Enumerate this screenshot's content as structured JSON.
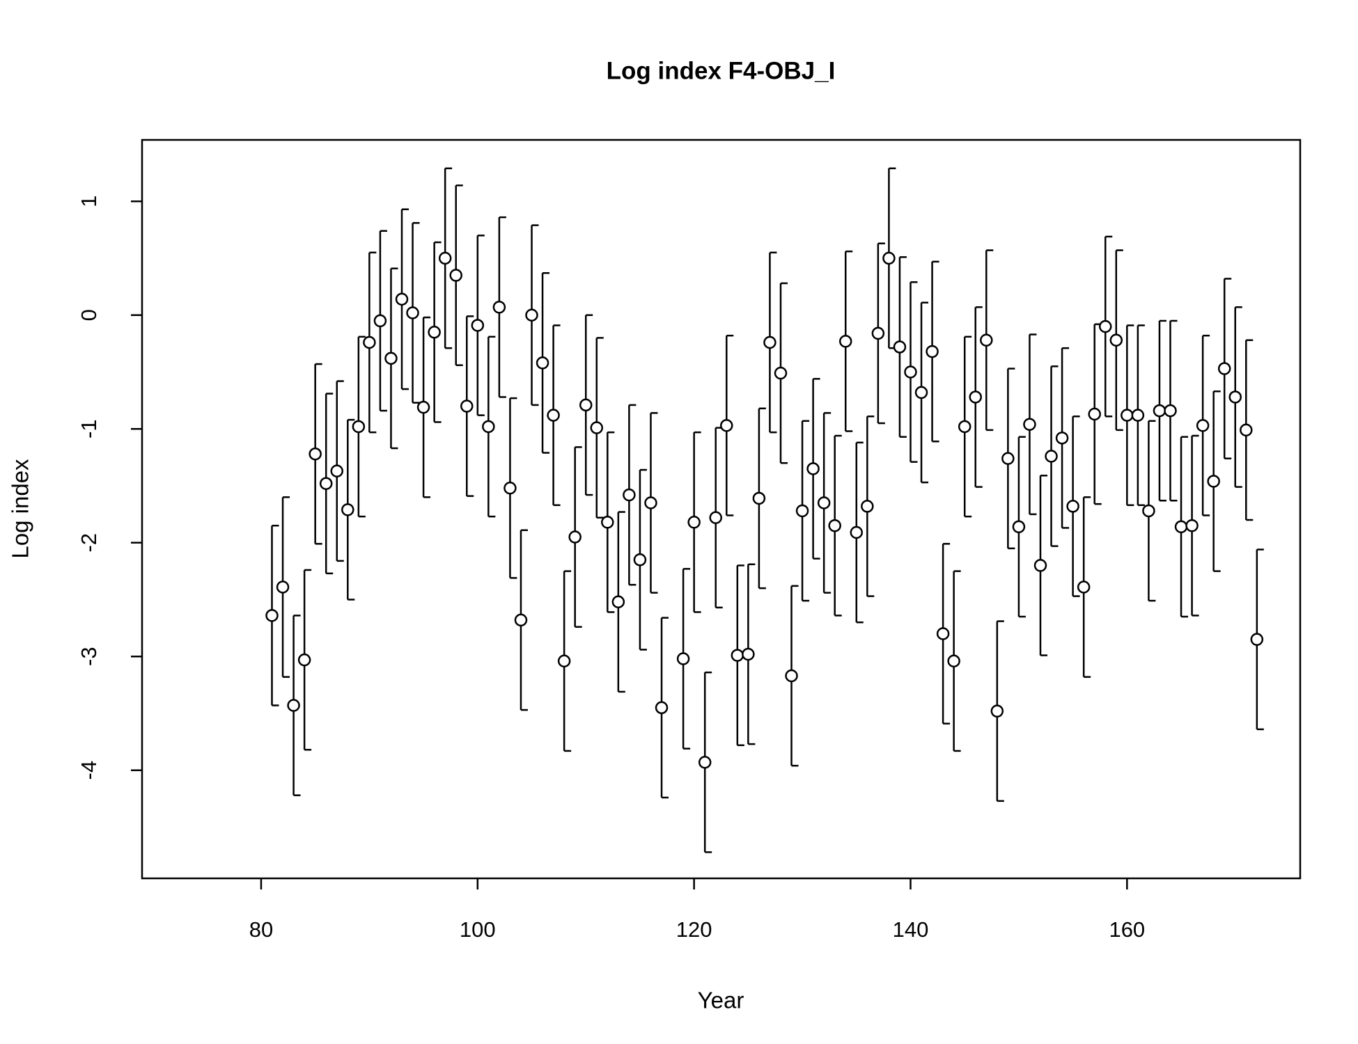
{
  "chart_data": {
    "type": "errorbar",
    "title": "Log index F4-OBJ_I",
    "x_label": "Year",
    "y_label": "Log index",
    "x": [
      81,
      82,
      83,
      84,
      85,
      86,
      87,
      88,
      89,
      90,
      91,
      92,
      93,
      94,
      95,
      96,
      97,
      98,
      99,
      100,
      101,
      102,
      103,
      104,
      105,
      106,
      107,
      108,
      109,
      110,
      111,
      112,
      113,
      114,
      115,
      116,
      117,
      119,
      120,
      121,
      122,
      123,
      124,
      125,
      126,
      127,
      128,
      129,
      130,
      131,
      132,
      133,
      134,
      135,
      136,
      137,
      138,
      139,
      140,
      141,
      142,
      143,
      144,
      145,
      146,
      147,
      148,
      149,
      150,
      151,
      152,
      153,
      154,
      155,
      156,
      157,
      158,
      159,
      160,
      161,
      162,
      163,
      164,
      165,
      166,
      167,
      168,
      169,
      170,
      171,
      172
    ],
    "values": [
      -2.64,
      -2.39,
      -3.43,
      -3.03,
      -1.22,
      -1.48,
      -1.37,
      -1.71,
      -0.98,
      -0.24,
      -0.05,
      -0.38,
      0.14,
      0.02,
      -0.81,
      -0.15,
      0.5,
      0.35,
      -0.8,
      -0.09,
      -0.98,
      0.07,
      -1.52,
      -2.68,
      0.0,
      -0.42,
      -0.88,
      -3.04,
      -1.95,
      -0.79,
      -0.99,
      -1.82,
      -2.52,
      -1.58,
      -2.15,
      -1.65,
      -3.45,
      -3.02,
      -1.82,
      -3.93,
      -1.78,
      -0.97,
      -2.99,
      -2.98,
      -1.61,
      -0.24,
      -0.51,
      -3.17,
      -1.72,
      -1.35,
      -1.65,
      -1.85,
      -0.23,
      -1.91,
      -1.68,
      -0.16,
      0.5,
      -0.28,
      -0.5,
      -0.68,
      -0.32,
      -2.8,
      -3.04,
      -0.98,
      -0.72,
      -0.22,
      -3.48,
      -1.26,
      -1.86,
      -0.96,
      -2.2,
      -1.24,
      -1.08,
      -1.68,
      -2.39,
      -0.87,
      -0.1,
      -0.22,
      -0.88,
      -0.88,
      -1.72,
      -0.84,
      -0.84,
      -1.86,
      -1.85,
      -0.97,
      -1.46,
      -0.47,
      -0.72,
      -1.01,
      -2.85
    ],
    "errors": [
      0.79,
      0.79,
      0.79,
      0.79,
      0.79,
      0.79,
      0.79,
      0.79,
      0.79,
      0.79,
      0.79,
      0.79,
      0.79,
      0.79,
      0.79,
      0.79,
      0.79,
      0.79,
      0.79,
      0.79,
      0.79,
      0.79,
      0.79,
      0.79,
      0.79,
      0.79,
      0.79,
      0.79,
      0.79,
      0.79,
      0.79,
      0.79,
      0.79,
      0.79,
      0.79,
      0.79,
      0.79,
      0.79,
      0.79,
      0.79,
      0.79,
      0.79,
      0.79,
      0.79,
      0.79,
      0.79,
      0.79,
      0.79,
      0.79,
      0.79,
      0.79,
      0.79,
      0.79,
      0.79,
      0.79,
      0.79,
      0.79,
      0.79,
      0.79,
      0.79,
      0.79,
      0.79,
      0.79,
      0.79,
      0.79,
      0.79,
      0.79,
      0.79,
      0.79,
      0.79,
      0.79,
      0.79,
      0.79,
      0.79,
      0.79,
      0.79,
      0.79,
      0.79,
      0.79,
      0.79,
      0.79,
      0.79,
      0.79,
      0.79,
      0.79,
      0.79,
      0.79,
      0.79,
      0.79,
      0.79,
      0.79
    ],
    "xlim": [
      69,
      176
    ],
    "ylim": [
      -4.95,
      1.54
    ],
    "xticks": [
      80,
      100,
      120,
      140,
      160
    ],
    "yticks": [
      -4,
      -3,
      -2,
      -1,
      0,
      1
    ]
  }
}
